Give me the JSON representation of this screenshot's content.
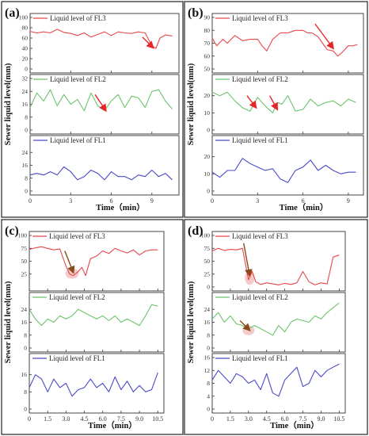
{
  "figure": {
    "y_axis_label": "Sewer liquid level(mm)",
    "x_axis_label": "Time（min）",
    "colors": {
      "fl3": "#e8474b",
      "fl2": "#6cc46c",
      "fl1": "#4a4ac8",
      "arrow_red": "#e8262a",
      "arrow_brown": "#8a4a1e",
      "highlight": "#f2b8b8"
    }
  },
  "chart_data": [
    {
      "type": "line",
      "panel_label": "(a)",
      "x_ticks": [
        "0",
        "3",
        "6",
        "9"
      ],
      "x_max": 11,
      "panels": [
        {
          "series_name": "Liquid level of FL3",
          "ylim": [
            0,
            100
          ],
          "yticks": [
            "0",
            "20",
            "40",
            "60",
            "80",
            "100"
          ],
          "x": [
            0,
            0.5,
            1,
            1.5,
            2,
            2.5,
            3,
            3.5,
            4,
            4.5,
            5,
            5.5,
            6,
            6.5,
            7,
            7.5,
            8,
            8.5,
            9,
            9.3,
            9.6,
            10,
            10.5
          ],
          "y": [
            73,
            70,
            72,
            70,
            77,
            71,
            69,
            65,
            70,
            62,
            67,
            72,
            65,
            72,
            70,
            69,
            72,
            70,
            45,
            40,
            60,
            66,
            64
          ],
          "arrows": [
            {
              "from": [
                8.3,
                62
              ],
              "to": [
                9.1,
                41
              ],
              "color": "#e8262a"
            }
          ]
        },
        {
          "series_name": "Liquid level of FL2",
          "ylim": [
            0,
            32
          ],
          "yticks": [
            "0",
            "8",
            "16",
            "24",
            "32"
          ],
          "x": [
            0,
            0.5,
            1,
            1.5,
            2,
            2.5,
            3,
            3.5,
            4,
            4.5,
            5,
            5.5,
            6,
            6.5,
            7,
            7.5,
            8,
            8.5,
            9,
            9.5,
            10,
            10.5
          ],
          "y": [
            14,
            23,
            18,
            25,
            15,
            22,
            16,
            19,
            12,
            23,
            15,
            12,
            18,
            22,
            14,
            21,
            20,
            14,
            24,
            25,
            18,
            13
          ],
          "arrows": [
            {
              "from": [
                4.8,
                22
              ],
              "to": [
                5.6,
                12
              ],
              "color": "#e8262a"
            }
          ]
        },
        {
          "series_name": "Liquid level of FL1",
          "ylim": [
            0,
            32
          ],
          "yticks": [
            "0",
            "8",
            "16",
            "24"
          ],
          "x": [
            0,
            0.5,
            1,
            1.5,
            2,
            2.5,
            3,
            3.5,
            4,
            4.5,
            5,
            5.5,
            6,
            6.5,
            7,
            7.5,
            8,
            8.5,
            9,
            9.5,
            10,
            10.5
          ],
          "y": [
            10,
            11,
            10,
            12,
            10,
            15,
            12,
            7,
            9,
            13,
            11,
            7,
            12,
            9,
            9,
            7,
            10,
            9,
            13,
            9,
            11,
            7
          ],
          "arrows": []
        }
      ]
    },
    {
      "type": "line",
      "panel_label": "(b)",
      "x_ticks": [
        "0",
        "3",
        "6",
        "9"
      ],
      "x_max": 10,
      "panels": [
        {
          "series_name": "Liquid level of FL3",
          "ylim": [
            50,
            90
          ],
          "yticks": [
            "50",
            "60",
            "70",
            "80",
            "90"
          ],
          "x": [
            0,
            0.3,
            0.7,
            1,
            1.5,
            2,
            2.5,
            3,
            3.3,
            3.6,
            4,
            4.5,
            5,
            5.5,
            6,
            6.3,
            6.6,
            7,
            7.3,
            7.6,
            8,
            8.3,
            8.6,
            9,
            9.3,
            9.6
          ],
          "y": [
            74,
            68,
            73,
            70,
            76,
            72,
            73,
            73,
            68,
            64,
            73,
            78,
            78,
            80,
            80,
            78,
            78,
            75,
            70,
            65,
            64,
            60,
            63,
            68,
            68,
            69
          ],
          "arrows": [
            {
              "from": [
                6.8,
                85
              ],
              "to": [
                8.0,
                66
              ],
              "color": "#e8262a"
            }
          ]
        },
        {
          "series_name": "Liquid level of FL2",
          "ylim": [
            0,
            30
          ],
          "yticks": [
            "0",
            "10",
            "20"
          ],
          "x": [
            0,
            0.5,
            1,
            1.5,
            2,
            2.5,
            3,
            3.5,
            4,
            4.3,
            4.6,
            5,
            5.5,
            6,
            6.5,
            7,
            7.5,
            8,
            8.5,
            9,
            9.5
          ],
          "y": [
            22,
            20,
            22,
            17,
            13,
            11,
            19,
            14,
            10,
            16,
            15,
            20,
            11,
            12,
            18,
            14,
            16,
            17,
            14,
            18,
            16
          ],
          "arrows": [
            {
              "from": [
                2.3,
                20
              ],
              "to": [
                2.9,
                13
              ],
              "color": "#e8262a"
            },
            {
              "from": [
                3.8,
                20
              ],
              "to": [
                4.3,
                12
              ],
              "color": "#e8262a"
            }
          ]
        },
        {
          "series_name": "Liquid level of FL1",
          "ylim": [
            0,
            30
          ],
          "yticks": [
            "0",
            "10",
            "20"
          ],
          "x": [
            0,
            0.5,
            1,
            1.5,
            2,
            2.5,
            3,
            3.5,
            4,
            4.5,
            5,
            5.5,
            6,
            6.5,
            7,
            7.5,
            8,
            8.5,
            9,
            9.5
          ],
          "y": [
            11,
            8,
            12,
            12,
            19,
            16,
            14,
            12,
            13,
            7,
            5,
            12,
            14,
            18,
            12,
            15,
            12,
            10,
            11,
            11
          ],
          "arrows": []
        }
      ]
    },
    {
      "type": "line",
      "panel_label": "(c)",
      "x_ticks": [
        "0",
        "1.5",
        "3.0",
        "4.5",
        "6.0",
        "7.5",
        "9.0",
        "10.5"
      ],
      "x_max": 11,
      "panels": [
        {
          "series_name": "Liquid level of FL3",
          "ylim": [
            0,
            100
          ],
          "yticks": [
            "25",
            "50",
            "75",
            "100"
          ],
          "x": [
            0,
            0.5,
            1,
            1.5,
            2,
            2.5,
            3,
            3.3,
            3.6,
            4,
            4.3,
            4.6,
            5,
            5.5,
            6,
            6.5,
            7,
            7.5,
            8,
            8.5,
            9,
            9.5,
            10,
            10.5
          ],
          "y": [
            73,
            76,
            78,
            75,
            72,
            74,
            40,
            25,
            22,
            30,
            38,
            22,
            55,
            60,
            70,
            65,
            75,
            70,
            66,
            72,
            62,
            70,
            72,
            72
          ],
          "arrows": [
            {
              "from": [
                2.9,
                70
              ],
              "to": [
                3.6,
                28
              ],
              "color": "#8a4a1e"
            }
          ],
          "highlight": {
            "x": 3.5,
            "y": 26,
            "rx": 0.55,
            "ry": 10
          }
        },
        {
          "series_name": "Liquid level of  FL2",
          "ylim": [
            0,
            32
          ],
          "yticks": [
            "0",
            "8",
            "16",
            "24"
          ],
          "x": [
            0,
            0.5,
            1,
            1.5,
            2,
            2.5,
            3,
            3.5,
            4,
            4.5,
            5,
            5.5,
            6,
            6.5,
            7,
            7.5,
            8,
            8.5,
            9,
            9.5,
            10,
            10.5
          ],
          "y": [
            24,
            18,
            14,
            18,
            16,
            20,
            18,
            20,
            24,
            22,
            20,
            18,
            20,
            17,
            20,
            16,
            18,
            16,
            14,
            20,
            27,
            26
          ],
          "arrows": []
        },
        {
          "series_name": "Liquid level of FL1",
          "ylim": [
            0,
            24
          ],
          "yticks": [
            "0",
            "8",
            "16"
          ],
          "x": [
            0,
            0.5,
            1,
            1.5,
            2,
            2.5,
            3,
            3.5,
            4,
            4.5,
            5,
            5.5,
            6,
            6.5,
            7,
            7.5,
            8,
            8.5,
            9,
            9.5,
            10,
            10.5
          ],
          "y": [
            10,
            16,
            14,
            8,
            14,
            10,
            12,
            6,
            9,
            10,
            14,
            10,
            12,
            8,
            15,
            9,
            13,
            8,
            11,
            8,
            9,
            17
          ],
          "arrows": []
        }
      ]
    },
    {
      "type": "line",
      "panel_label": "(d)",
      "x_ticks": [
        "0",
        "1.5",
        "3.0",
        "4.5",
        "6.0",
        "7.5",
        "9.0",
        "10.5"
      ],
      "x_max": 11,
      "panels": [
        {
          "series_name": "Liquid level of FL3",
          "ylim": [
            0,
            100
          ],
          "yticks": [
            "0",
            "25",
            "50",
            "75",
            "100"
          ],
          "x": [
            0,
            0.5,
            1,
            1.5,
            2,
            2.5,
            3,
            3.3,
            3.6,
            4,
            4.5,
            5,
            5.5,
            6,
            6.5,
            7,
            7.5,
            8,
            8.5,
            9,
            9.5,
            10,
            10.5
          ],
          "y": [
            70,
            75,
            71,
            73,
            72,
            75,
            14,
            30,
            10,
            5,
            8,
            6,
            4,
            7,
            5,
            8,
            30,
            10,
            4,
            8,
            6,
            58,
            62
          ],
          "arrows": [
            {
              "from": [
                2.6,
                85
              ],
              "to": [
                3.1,
                22
              ],
              "color": "#8a4a1e"
            }
          ],
          "highlight": {
            "x": 3.1,
            "y": 18,
            "rx": 0.4,
            "ry": 14
          }
        },
        {
          "series_name": "Liquid level of FL2",
          "ylim": [
            0,
            32
          ],
          "yticks": [
            "0",
            "8",
            "16",
            "24"
          ],
          "x": [
            0,
            0.5,
            1,
            1.5,
            2,
            2.5,
            3,
            3.5,
            4,
            4.5,
            5,
            5.5,
            6,
            6.5,
            7,
            7.5,
            8,
            8.5,
            9,
            9.5,
            10,
            10.5
          ],
          "y": [
            18,
            22,
            16,
            20,
            15,
            14,
            12,
            14,
            12,
            10,
            8,
            14,
            10,
            16,
            18,
            17,
            16,
            20,
            18,
            22,
            25,
            28
          ],
          "arrows": [
            {
              "from": [
                2.3,
                17
              ],
              "to": [
                3.1,
                11
              ],
              "color": "#8a4a1e"
            }
          ],
          "highlight": {
            "x": 3.0,
            "y": 11,
            "rx": 0.5,
            "ry": 3
          }
        },
        {
          "series_name": "Liquid level of FL1",
          "ylim": [
            0,
            16
          ],
          "yticks": [
            "0",
            "4",
            "8",
            "12",
            "16"
          ],
          "x": [
            0,
            0.5,
            1,
            1.5,
            2,
            2.5,
            3,
            3.5,
            4,
            4.5,
            5,
            5.5,
            6,
            6.5,
            7,
            7.5,
            8,
            8.5,
            9,
            9.5,
            10,
            10.5
          ],
          "y": [
            9,
            12,
            10,
            8,
            11,
            10,
            8,
            9,
            6,
            11,
            5,
            4,
            9,
            11,
            13,
            7,
            8,
            12,
            10,
            12,
            13,
            14
          ],
          "arrows": []
        }
      ]
    }
  ]
}
